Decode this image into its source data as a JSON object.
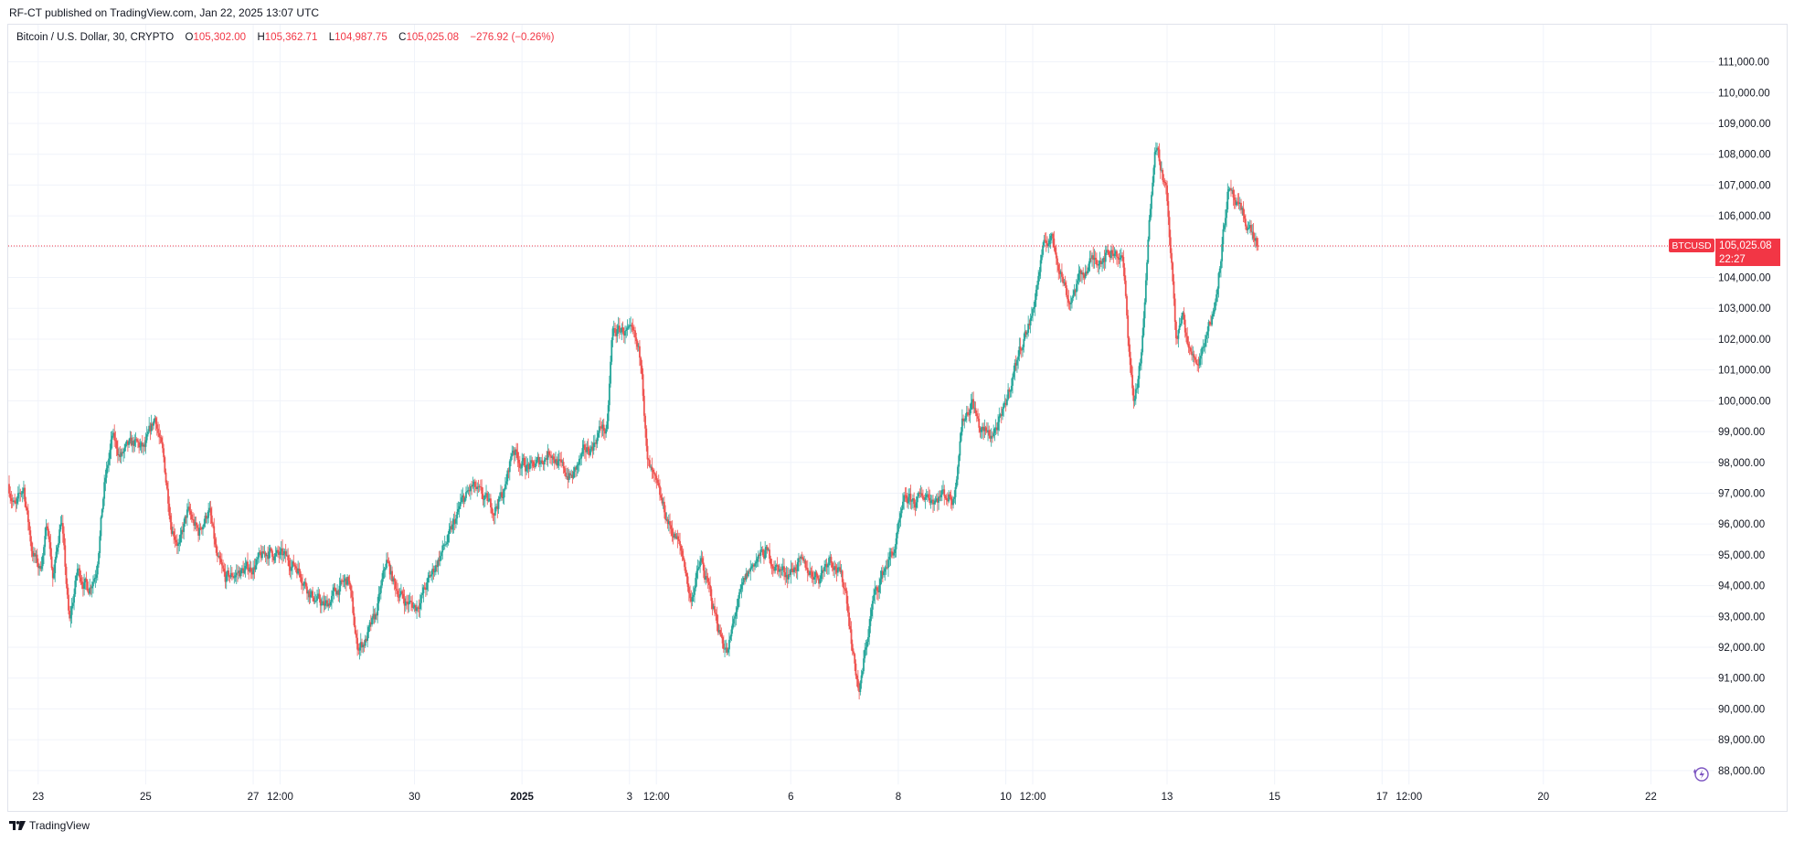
{
  "header": {
    "publish_text": "RF-CT published on TradingView.com, Jan 22, 2025 13:07 UTC"
  },
  "legend": {
    "symbol": "Bitcoin / U.S. Dollar, 30, CRYPTO",
    "o_label": "O",
    "o_value": "105,302.00",
    "h_label": "H",
    "h_value": "105,362.71",
    "l_label": "L",
    "l_value": "104,987.75",
    "c_label": "C",
    "c_value": "105,025.08",
    "change": "−276.92 (−0.26%)"
  },
  "price_tag": {
    "symbol": "BTCUSD",
    "price": "105,025.08",
    "countdown": "22:27"
  },
  "footer": {
    "brand": "TradingView",
    "logo_icon": "tradingview-logo-icon"
  },
  "colors": {
    "up": "#26a69a",
    "down": "#ef5350",
    "grid": "#f0f3fa",
    "price_line": "#f23645",
    "price_tag_bg": "#f23645",
    "axis_text": "#131722",
    "flash_icon": "#7e57c2"
  },
  "chart_data": {
    "type": "candlestick",
    "symbol": "BTCUSD",
    "interval": "30",
    "y_ticks": [
      88000,
      89000,
      90000,
      91000,
      92000,
      93000,
      94000,
      95000,
      96000,
      97000,
      98000,
      99000,
      100000,
      101000,
      102000,
      103000,
      104000,
      105000,
      106000,
      107000,
      108000,
      109000,
      110000,
      111000
    ],
    "y_tick_labels": [
      "88,000.00",
      "89,000.00",
      "90,000.00",
      "91,000.00",
      "92,000.00",
      "93,000.00",
      "94,000.00",
      "95,000.00",
      "96,000.00",
      "97,000.00",
      "98,000.00",
      "99,000.00",
      "100,000.00",
      "101,000.00",
      "102,000.00",
      "103,000.00",
      "104,000.00",
      "105,000.00",
      "106,000.00",
      "107,000.00",
      "108,000.00",
      "109,000.00",
      "110,000.00",
      "111,000.00"
    ],
    "ylim": [
      87550,
      111700
    ],
    "x_ticks": [
      {
        "label": "23",
        "day": 1.5,
        "bold": false
      },
      {
        "label": "25",
        "day": 3.5,
        "bold": false
      },
      {
        "label": "27",
        "day": 5.5,
        "bold": false
      },
      {
        "label": "12:00",
        "day": 6.0,
        "bold": false
      },
      {
        "label": "30",
        "day": 8.5,
        "bold": false
      },
      {
        "label": "2025",
        "day": 10.5,
        "bold": true
      },
      {
        "label": "3",
        "day": 12.5,
        "bold": false
      },
      {
        "label": "12:00",
        "day": 13.0,
        "bold": false
      },
      {
        "label": "6",
        "day": 15.5,
        "bold": false
      },
      {
        "label": "8",
        "day": 17.5,
        "bold": false
      },
      {
        "label": "10",
        "day": 19.5,
        "bold": false
      },
      {
        "label": "12:00",
        "day": 20.0,
        "bold": false
      },
      {
        "label": "13",
        "day": 22.5,
        "bold": false
      },
      {
        "label": "15",
        "day": 24.5,
        "bold": false
      },
      {
        "label": "17",
        "day": 26.5,
        "bold": false
      },
      {
        "label": "12:00",
        "day": 27.0,
        "bold": false
      },
      {
        "label": "20",
        "day": 29.5,
        "bold": false
      },
      {
        "label": "22",
        "day": 31.5,
        "bold": false
      }
    ],
    "xlim": [
      0.96,
      32.7
    ],
    "last_price": 105025.08,
    "price_path": [
      [
        0.96,
        97300
      ],
      [
        1.1,
        96500
      ],
      [
        1.25,
        97200
      ],
      [
        1.4,
        95200
      ],
      [
        1.55,
        94500
      ],
      [
        1.7,
        96000
      ],
      [
        1.8,
        94200
      ],
      [
        1.95,
        96300
      ],
      [
        2.1,
        92700
      ],
      [
        2.25,
        94500
      ],
      [
        2.45,
        93900
      ],
      [
        2.6,
        94500
      ],
      [
        2.75,
        97200
      ],
      [
        2.9,
        98800
      ],
      [
        3.05,
        98200
      ],
      [
        3.3,
        98600
      ],
      [
        3.5,
        98400
      ],
      [
        3.7,
        99500
      ],
      [
        3.85,
        98100
      ],
      [
        4.0,
        96000
      ],
      [
        4.15,
        95300
      ],
      [
        4.3,
        96400
      ],
      [
        4.5,
        95700
      ],
      [
        4.7,
        96500
      ],
      [
        4.85,
        94800
      ],
      [
        5.0,
        94200
      ],
      [
        5.2,
        94400
      ],
      [
        5.5,
        94600
      ],
      [
        5.8,
        95100
      ],
      [
        6.1,
        94900
      ],
      [
        6.35,
        94600
      ],
      [
        6.6,
        93700
      ],
      [
        6.85,
        93300
      ],
      [
        7.1,
        93900
      ],
      [
        7.3,
        94200
      ],
      [
        7.45,
        92000
      ],
      [
        7.6,
        92200
      ],
      [
        7.8,
        93000
      ],
      [
        8.0,
        94800
      ],
      [
        8.15,
        94000
      ],
      [
        8.35,
        93500
      ],
      [
        8.55,
        93300
      ],
      [
        8.75,
        94000
      ],
      [
        9.0,
        95000
      ],
      [
        9.2,
        95700
      ],
      [
        9.4,
        96700
      ],
      [
        9.6,
        97200
      ],
      [
        9.8,
        96800
      ],
      [
        10.0,
        96500
      ],
      [
        10.2,
        97100
      ],
      [
        10.35,
        98500
      ],
      [
        10.5,
        98000
      ],
      [
        10.7,
        97800
      ],
      [
        10.9,
        98100
      ],
      [
        11.05,
        98400
      ],
      [
        11.25,
        97800
      ],
      [
        11.45,
        97500
      ],
      [
        11.65,
        98200
      ],
      [
        11.85,
        98600
      ],
      [
        12.0,
        99200
      ],
      [
        12.1,
        98900
      ],
      [
        12.2,
        102200
      ],
      [
        12.4,
        102300
      ],
      [
        12.6,
        102000
      ],
      [
        12.75,
        101200
      ],
      [
        12.85,
        98000
      ],
      [
        13.05,
        97000
      ],
      [
        13.25,
        96000
      ],
      [
        13.4,
        95500
      ],
      [
        13.55,
        94700
      ],
      [
        13.65,
        93500
      ],
      [
        13.85,
        94800
      ],
      [
        14.05,
        93500
      ],
      [
        14.2,
        92500
      ],
      [
        14.35,
        91800
      ],
      [
        14.5,
        93200
      ],
      [
        14.7,
        94300
      ],
      [
        14.85,
        94800
      ],
      [
        15.05,
        95100
      ],
      [
        15.25,
        94600
      ],
      [
        15.45,
        94400
      ],
      [
        15.65,
        94700
      ],
      [
        15.85,
        94500
      ],
      [
        16.05,
        94300
      ],
      [
        16.25,
        95000
      ],
      [
        16.4,
        94500
      ],
      [
        16.55,
        93800
      ],
      [
        16.7,
        91500
      ],
      [
        16.8,
        90500
      ],
      [
        16.9,
        91800
      ],
      [
        17.05,
        93500
      ],
      [
        17.25,
        94500
      ],
      [
        17.45,
        95200
      ],
      [
        17.65,
        96800
      ],
      [
        17.85,
        96700
      ],
      [
        18.05,
        97000
      ],
      [
        18.2,
        96800
      ],
      [
        18.35,
        97000
      ],
      [
        18.55,
        96800
      ],
      [
        18.7,
        99300
      ],
      [
        18.9,
        100000
      ],
      [
        19.05,
        99000
      ],
      [
        19.25,
        98900
      ],
      [
        19.45,
        99400
      ],
      [
        19.6,
        100500
      ],
      [
        19.8,
        101800
      ],
      [
        20.0,
        102700
      ],
      [
        20.2,
        104800
      ],
      [
        20.35,
        105400
      ],
      [
        20.5,
        104500
      ],
      [
        20.7,
        103200
      ],
      [
        20.9,
        104000
      ],
      [
        21.1,
        104500
      ],
      [
        21.3,
        104700
      ],
      [
        21.55,
        104900
      ],
      [
        21.7,
        104500
      ],
      [
        21.8,
        102000
      ],
      [
        21.9,
        99900
      ],
      [
        22.05,
        101500
      ],
      [
        22.2,
        106000
      ],
      [
        22.3,
        108600
      ],
      [
        22.4,
        107700
      ],
      [
        22.5,
        106800
      ],
      [
        22.6,
        104500
      ],
      [
        22.7,
        101800
      ],
      [
        22.8,
        102800
      ],
      [
        22.95,
        101500
      ],
      [
        23.1,
        101300
      ],
      [
        23.25,
        102200
      ],
      [
        23.4,
        103000
      ],
      [
        23.55,
        105200
      ],
      [
        23.65,
        106800
      ],
      [
        23.8,
        106300
      ],
      [
        23.95,
        105900
      ],
      [
        24.1,
        105500
      ],
      [
        24.2,
        105025
      ]
    ],
    "pre_axis_last_day": 24.2
  }
}
